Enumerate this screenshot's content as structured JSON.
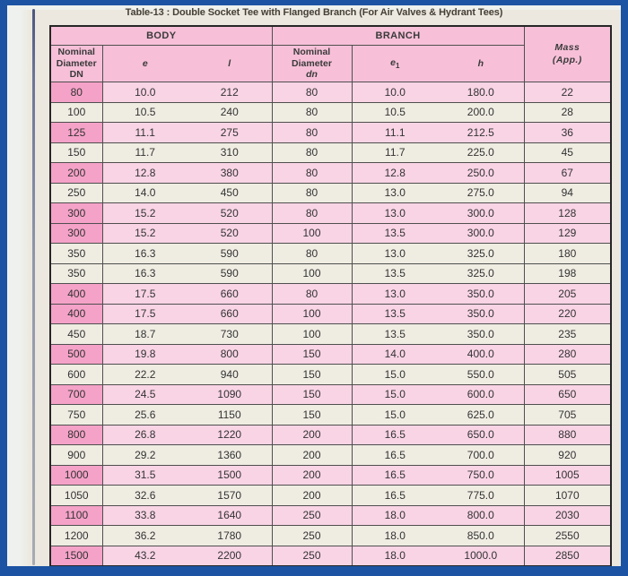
{
  "title": "Table-13 : Double Socket Tee with Flanged Branch (For Air Valves & Hydrant Tees)",
  "table": {
    "group_body": "BODY",
    "group_branch": "BRANCH",
    "body_dn_header": {
      "label": "Nominal Diameter",
      "sub": "DN"
    },
    "e_header": "e",
    "l_header": "l",
    "branch_dn_header": {
      "label": "Nominal Diameter",
      "sub": "dn"
    },
    "e1_header": {
      "base": "e",
      "sub": "1"
    },
    "h_header": "h",
    "mass_header": {
      "line1": "Mass",
      "line2": "(App.)"
    },
    "rows": [
      [
        "80",
        "10.0",
        "212",
        "80",
        "10.0",
        "180.0",
        "22"
      ],
      [
        "100",
        "10.5",
        "240",
        "80",
        "10.5",
        "200.0",
        "28"
      ],
      [
        "125",
        "11.1",
        "275",
        "80",
        "11.1",
        "212.5",
        "36"
      ],
      [
        "150",
        "11.7",
        "310",
        "80",
        "11.7",
        "225.0",
        "45"
      ],
      [
        "200",
        "12.8",
        "380",
        "80",
        "12.8",
        "250.0",
        "67"
      ],
      [
        "250",
        "14.0",
        "450",
        "80",
        "13.0",
        "275.0",
        "94"
      ],
      [
        "300",
        "15.2",
        "520",
        "80",
        "13.0",
        "300.0",
        "128"
      ],
      [
        "300",
        "15.2",
        "520",
        "100",
        "13.5",
        "300.0",
        "129"
      ],
      [
        "350",
        "16.3",
        "590",
        "80",
        "13.0",
        "325.0",
        "180"
      ],
      [
        "350",
        "16.3",
        "590",
        "100",
        "13.5",
        "325.0",
        "198"
      ],
      [
        "400",
        "17.5",
        "660",
        "80",
        "13.0",
        "350.0",
        "205"
      ],
      [
        "400",
        "17.5",
        "660",
        "100",
        "13.5",
        "350.0",
        "220"
      ],
      [
        "450",
        "18.7",
        "730",
        "100",
        "13.5",
        "350.0",
        "235"
      ],
      [
        "500",
        "19.8",
        "800",
        "150",
        "14.0",
        "400.0",
        "280"
      ],
      [
        "600",
        "22.2",
        "940",
        "150",
        "15.0",
        "550.0",
        "505"
      ],
      [
        "700",
        "24.5",
        "1090",
        "150",
        "15.0",
        "600.0",
        "650"
      ],
      [
        "750",
        "25.6",
        "1150",
        "150",
        "15.0",
        "625.0",
        "705"
      ],
      [
        "800",
        "26.8",
        "1220",
        "200",
        "16.5",
        "650.0",
        "880"
      ],
      [
        "900",
        "29.2",
        "1360",
        "200",
        "16.5",
        "700.0",
        "920"
      ],
      [
        "1000",
        "31.5",
        "1500",
        "200",
        "16.5",
        "750.0",
        "1005"
      ],
      [
        "1050",
        "32.6",
        "1570",
        "200",
        "16.5",
        "775.0",
        "1070"
      ],
      [
        "1100",
        "33.8",
        "1640",
        "250",
        "18.0",
        "800.0",
        "2030"
      ],
      [
        "1200",
        "36.2",
        "1780",
        "250",
        "18.0",
        "850.0",
        "2550"
      ],
      [
        "1500",
        "43.2",
        "2200",
        "250",
        "18.0",
        "1000.0",
        "2850"
      ]
    ]
  },
  "colors": {
    "frame_blue": "#1c53a3",
    "page_cream": "#ece8df",
    "margin_white": "#eef1ee",
    "header_pink": "#f7c0d8",
    "row_pink": "#f9d4e5",
    "row_pink_dn": "#f5a2c8",
    "row_cream": "#efece2"
  }
}
